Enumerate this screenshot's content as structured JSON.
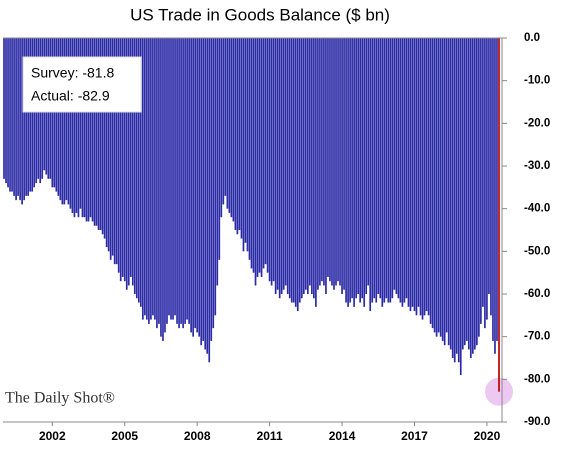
{
  "chart_data": {
    "type": "bar",
    "title": "US Trade in Goods Balance ($ bn)",
    "annotations": [
      "Survey: -81.8",
      "Actual:  -82.9"
    ],
    "source": "The Daily Shot®",
    "color": "#2b2aa6",
    "highlight_color": "#c00000",
    "categories": [
      null,
      null,
      null,
      null,
      null,
      null,
      null,
      null,
      null,
      null,
      null,
      null,
      null,
      null,
      null,
      null,
      null,
      null,
      null,
      null,
      null,
      null,
      null,
      null,
      "2002",
      null,
      null,
      null,
      null,
      null,
      null,
      null,
      null,
      null,
      null,
      null,
      null,
      null,
      null,
      null,
      null,
      null,
      null,
      null,
      null,
      null,
      null,
      null,
      null,
      null,
      null,
      null,
      null,
      null,
      null,
      null,
      null,
      null,
      null,
      null,
      "2005",
      null,
      null,
      null,
      null,
      null,
      null,
      null,
      null,
      null,
      null,
      null,
      null,
      null,
      null,
      null,
      null,
      null,
      null,
      null,
      null,
      null,
      null,
      null,
      null,
      null,
      null,
      null,
      null,
      null,
      null,
      null,
      null,
      null,
      null,
      null,
      "2008",
      null,
      null,
      null,
      null,
      null,
      null,
      null,
      null,
      null,
      null,
      null,
      null,
      null,
      null,
      null,
      null,
      null,
      null,
      null,
      null,
      null,
      null,
      null,
      null,
      null,
      null,
      null,
      null,
      null,
      null,
      null,
      null,
      null,
      null,
      null,
      "2011",
      null,
      null,
      null,
      null,
      null,
      null,
      null,
      null,
      null,
      null,
      null,
      null,
      null,
      null,
      null,
      null,
      null,
      null,
      null,
      null,
      null,
      null,
      null,
      null,
      null,
      null,
      null,
      null,
      null,
      null,
      null,
      null,
      null,
      null,
      null,
      "2014",
      null,
      null,
      null,
      null,
      null,
      null,
      null,
      null,
      null,
      null,
      null,
      null,
      null,
      null,
      null,
      null,
      null,
      null,
      null,
      null,
      null,
      null,
      null,
      null,
      null,
      null,
      null,
      null,
      null,
      null,
      null,
      null,
      null,
      null,
      null,
      "2017",
      null,
      null,
      null,
      null,
      null,
      null,
      null,
      null,
      null,
      null,
      null,
      null,
      null,
      null,
      null,
      null,
      null,
      null,
      null,
      null,
      null,
      null,
      null,
      null,
      null,
      null,
      null,
      null,
      null,
      null,
      null,
      null,
      null,
      null,
      null,
      "2020",
      null,
      null,
      null,
      null,
      null,
      null
    ],
    "values": [
      -33,
      -34,
      -35,
      -36,
      -36,
      -37,
      -38,
      -37,
      -38,
      -39,
      -38,
      -37,
      -37,
      -36,
      -36,
      -35,
      -34,
      -33,
      -34,
      -33,
      -31,
      -32,
      -33,
      -33,
      -35,
      -35,
      -36,
      -37,
      -38,
      -39,
      -39,
      -38,
      -39,
      -40,
      -41,
      -42,
      -41,
      -42,
      -40,
      -42,
      -42,
      -43,
      -43,
      -42,
      -43,
      -44,
      -44,
      -45,
      -45,
      -46,
      -47,
      -49,
      -50,
      -52,
      -51,
      -53,
      -53,
      -55,
      -57,
      -56,
      -57,
      -59,
      -58,
      -56,
      -58,
      -60,
      -61,
      -62,
      -63,
      -66,
      -65,
      -66,
      -67,
      -66,
      -65,
      -66,
      -68,
      -67,
      -70,
      -71,
      -69,
      -67,
      -65,
      -66,
      -66,
      -65,
      -67,
      -68,
      -67,
      -68,
      -67,
      -66,
      -67,
      -69,
      -70,
      -68,
      -69,
      -70,
      -72,
      -71,
      -73,
      -74,
      -76,
      -71,
      -68,
      -65,
      -58,
      -52,
      -42,
      -39,
      -37,
      -40,
      -41,
      -42,
      -43,
      -45,
      -46,
      -45,
      -47,
      -50,
      -48,
      -50,
      -52,
      -54,
      -55,
      -58,
      -56,
      -55,
      -56,
      -54,
      -53,
      -55,
      -57,
      -58,
      -57,
      -60,
      -59,
      -61,
      -60,
      -59,
      -58,
      -60,
      -61,
      -62,
      -62,
      -63,
      -64,
      -62,
      -61,
      -60,
      -59,
      -60,
      -58,
      -60,
      -61,
      -63,
      -59,
      -58,
      -57,
      -58,
      -60,
      -56,
      -57,
      -58,
      -59,
      -58,
      -57,
      -58,
      -60,
      -59,
      -62,
      -63,
      -62,
      -61,
      -63,
      -61,
      -60,
      -62,
      -61,
      -63,
      -60,
      -58,
      -64,
      -62,
      -61,
      -62,
      -60,
      -61,
      -63,
      -62,
      -61,
      -62,
      -62,
      -61,
      -59,
      -60,
      -61,
      -62,
      -63,
      -62,
      -61,
      -63,
      -64,
      -63,
      -64,
      -65,
      -63,
      -65,
      -66,
      -65,
      -64,
      -65,
      -67,
      -68,
      -69,
      -70,
      -69,
      -70,
      -71,
      -72,
      -69,
      -72,
      -73,
      -75,
      -76,
      -74,
      -76,
      -79,
      -73,
      -72,
      -71,
      -73,
      -75,
      -74,
      -73,
      -72,
      -70,
      -67,
      -63,
      -68,
      -66,
      -60,
      -65,
      -71,
      -74,
      -71,
      -82.9
    ],
    "ylim": [
      -90,
      0
    ],
    "yticks": [
      {
        "value": 0,
        "label": "0.0"
      },
      {
        "value": -10,
        "label": "-10.0"
      },
      {
        "value": -20,
        "label": "-20.0"
      },
      {
        "value": -30,
        "label": "-30.0"
      },
      {
        "value": -40,
        "label": "-40.0"
      },
      {
        "value": -50,
        "label": "-50.0"
      },
      {
        "value": -60,
        "label": "-60.0"
      },
      {
        "value": -70,
        "label": "-70.0"
      },
      {
        "value": -80,
        "label": "-80.0"
      },
      {
        "value": -90,
        "label": "-90.0"
      }
    ]
  }
}
